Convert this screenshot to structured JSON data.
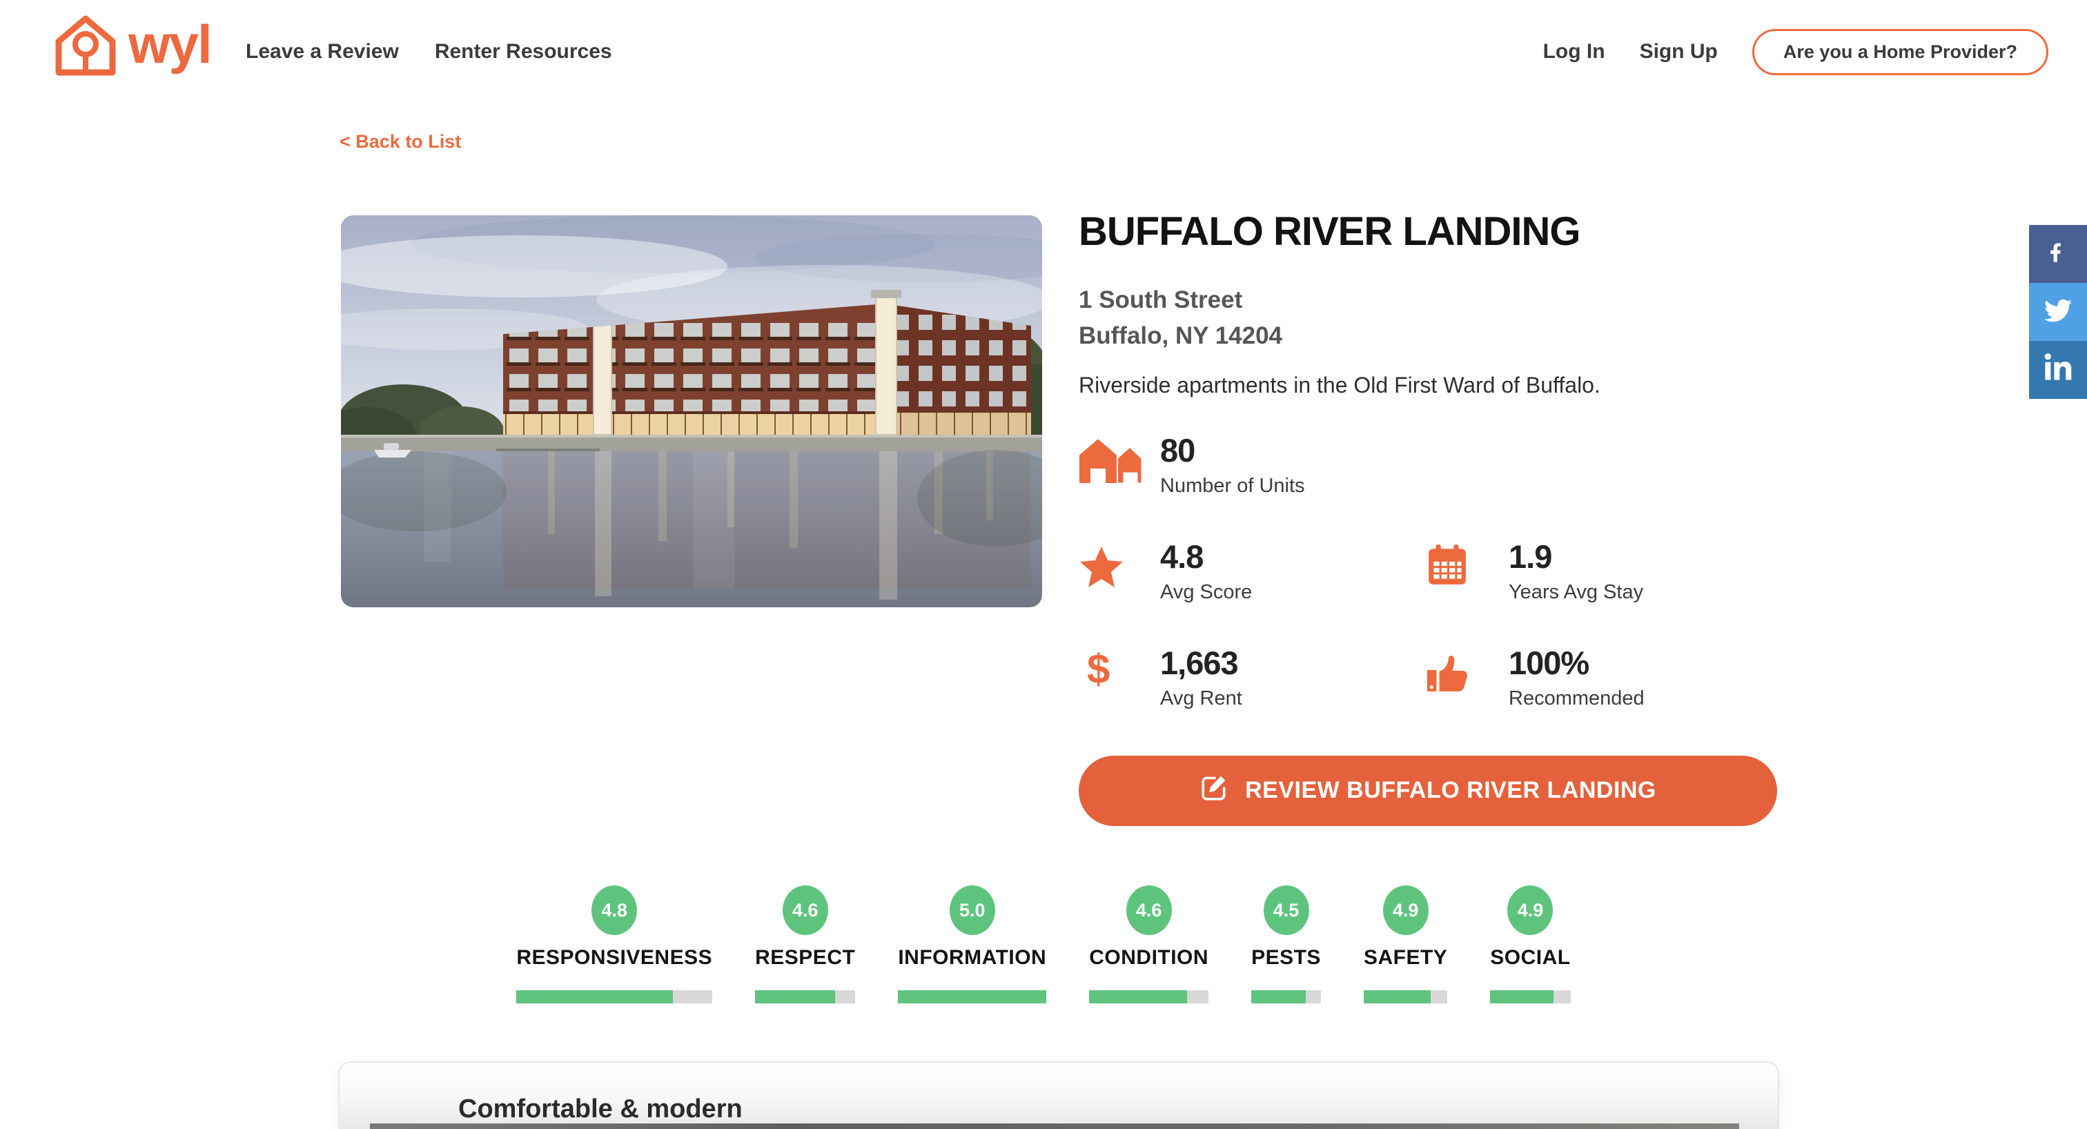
{
  "header": {
    "brand": "wyl",
    "nav": [
      {
        "label": "Leave a Review"
      },
      {
        "label": "Renter Resources"
      }
    ],
    "auth": {
      "login": "Log In",
      "signup": "Sign Up",
      "provider_button": "Are you a Home Provider?"
    }
  },
  "back_link": "< Back to List",
  "property": {
    "name": "BUFFALO RIVER LANDING",
    "address_line1": "1 South Street",
    "address_line2": "Buffalo, NY 14204",
    "description": "Riverside apartments in the Old First Ward of Buffalo.",
    "stats": [
      {
        "icon": "houses-icon",
        "value": "80",
        "label": "Number of Units"
      },
      {
        "icon": "star-icon",
        "value": "4.8",
        "label": "Avg Score"
      },
      {
        "icon": "calendar-icon",
        "value": "1.9",
        "label": "Years Avg Stay"
      },
      {
        "icon": "dollar-icon",
        "glyph": "$",
        "value": "1,663",
        "label": "Avg Rent"
      },
      {
        "icon": "thumbs-up-icon",
        "value": "100%",
        "label": "Recommended"
      }
    ],
    "review_button": "REVIEW BUFFALO RIVER LANDING"
  },
  "ratings": [
    {
      "score": "4.8",
      "label": "RESPONSIVENESS",
      "bar_pct": 80
    },
    {
      "score": "4.6",
      "label": "RESPECT",
      "bar_pct": 80
    },
    {
      "score": "5.0",
      "label": "INFORMATION",
      "bar_pct": 100
    },
    {
      "score": "4.6",
      "label": "CONDITION",
      "bar_pct": 82
    },
    {
      "score": "4.5",
      "label": "PESTS",
      "bar_pct": 78
    },
    {
      "score": "4.9",
      "label": "SAFETY",
      "bar_pct": 80
    },
    {
      "score": "4.9",
      "label": "SOCIAL",
      "bar_pct": 79
    }
  ],
  "review_card": {
    "title": "Comfortable & modern"
  },
  "share_sidebar": [
    {
      "icon": "facebook-icon"
    },
    {
      "icon": "twitter-icon"
    },
    {
      "icon": "linkedin-icon"
    }
  ],
  "colors": {
    "accent": "#ED6A3F",
    "button": "#E4613C",
    "green": "#5EC47D",
    "bar_track": "#D8D8D8",
    "facebook": "#4A5F94",
    "twitter": "#4FA0E4",
    "linkedin": "#3578B0"
  }
}
